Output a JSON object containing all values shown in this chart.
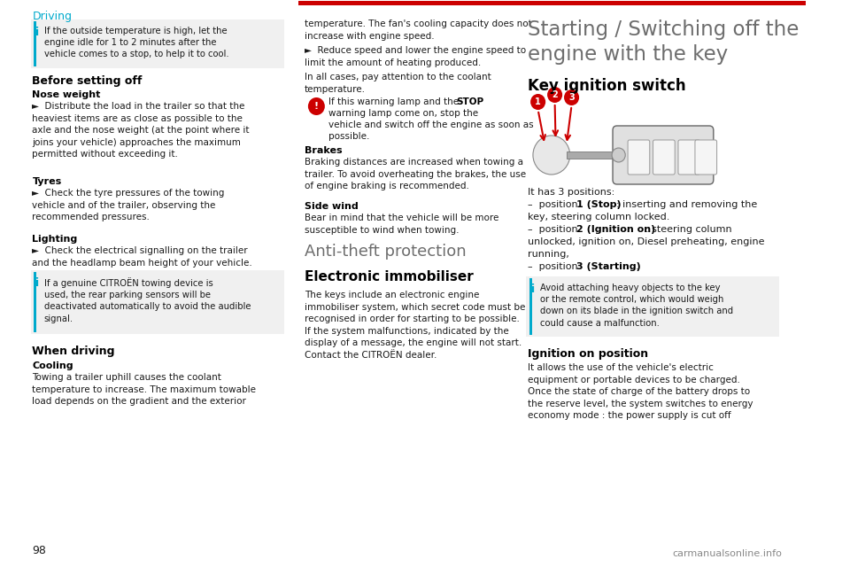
{
  "page_num": "98",
  "header_text": "Driving",
  "header_color": "#00aacc",
  "red_bar_color": "#cc0000",
  "bg_color": "#ffffff",
  "info_box_bg": "#f0f0f0",
  "info_icon_color": "#00aacc",
  "col1": {
    "info_box1": {
      "text": "If the outside temperature is high, let the\nengine idle for 1 to 2 minutes after the\nvehicle comes to a stop, to help it to cool."
    },
    "section1_title": "Before setting off",
    "subsection1": "Nose weight",
    "para1": "►  Distribute the load in the trailer so that the\nheaviest items are as close as possible to the\naxle and the nose weight (at the point where it\njoins your vehicle) approaches the maximum\npermitted without exceeding it.",
    "subsection2": "Tyres",
    "para2": "►  Check the tyre pressures of the towing\nvehicle and of the trailer, observing the\nrecommended pressures.",
    "subsection3": "Lighting",
    "para3": "►  Check the electrical signalling on the trailer\nand the headlamp beam height of your vehicle.",
    "info_box2": {
      "text": "If a genuine CITROËN towing device is\nused, the rear parking sensors will be\ndeactivated automatically to avoid the audible\nsignal."
    },
    "section2_title": "When driving",
    "subsection4": "Cooling",
    "para4": "Towing a trailer uphill causes the coolant\ntemperature to increase. The maximum towable\nload depends on the gradient and the exterior"
  },
  "col2": {
    "para1": "temperature. The fan's cooling capacity does not\nincrease with engine speed.",
    "arrow_text": "►  Reduce speed and lower the engine speed to\nlimit the amount of heating produced.",
    "para2": "In all cases, pay attention to the coolant\ntemperature.",
    "warning_text": "If this warning lamp and the STOP\nwarning lamp come on, stop the\nvehicle and switch off the engine as soon as\npossible.",
    "subsection1": "Brakes",
    "para3": "Braking distances are increased when towing a\ntrailer. To avoid overheating the brakes, the use\nof engine braking is recommended.",
    "subsection2": "Side wind",
    "para4": "Bear in mind that the vehicle will be more\nsusceptible to wind when towing.",
    "section_title": "Anti-theft protection",
    "section2_title": "Electronic immobiliser",
    "para5": "The keys include an electronic engine\nimmobiliser system, which secret code must be\nrecognised in order for starting to be possible.\nIf the system malfunctions, indicated by the\ndisplay of a message, the engine will not start.\nContact the CITROËN dealer."
  },
  "col3": {
    "main_title": "Starting / Switching off the\nengine with the key",
    "section_title": "Key ignition switch",
    "key_desc": "It has 3 positions:",
    "pos1": "–  position 1 (Stop): inserting and removing the\nkey, steering column locked.",
    "pos2": "–  position 2 (Ignition on): steering column\nunlocked, ignition on, Diesel preheating, engine\nrunning,",
    "pos3": "–  position 3 (Starting).",
    "info_box": {
      "text": "Avoid attaching heavy objects to the key\nor the remote control, which would weigh\ndown on its blade in the ignition switch and\ncould cause a malfunction."
    },
    "section2_title": "Ignition on position",
    "para1": "It allows the use of the vehicle's electric\nequipment or portable devices to be charged.\nOnce the state of charge of the battery drops to\nthe reserve level, the system switches to energy\neconomy mode : the power supply is cut off"
  },
  "title_color": "#6d6d6d",
  "text_color": "#1a1a1a",
  "bold_color": "#000000",
  "section_title_color": "#6d6d6d",
  "red_color": "#cc0000"
}
